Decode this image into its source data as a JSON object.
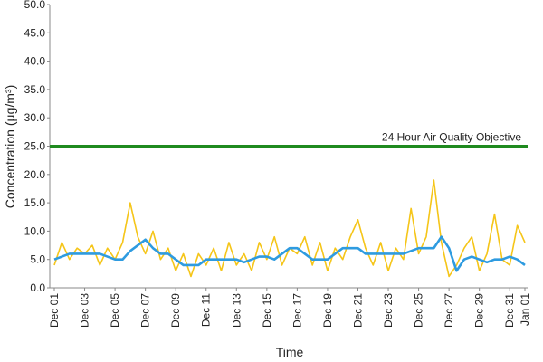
{
  "chart_data": {
    "type": "line",
    "ylabel": "Concentration (µg/m³)",
    "xlabel": "Time",
    "x": [
      0,
      0.5,
      1,
      1.5,
      2,
      2.5,
      3,
      3.5,
      4,
      4.5,
      5,
      5.5,
      6,
      6.5,
      7,
      7.5,
      8,
      8.5,
      9,
      9.5,
      10,
      10.5,
      11,
      11.5,
      12,
      12.5,
      13,
      13.5,
      14,
      14.5,
      15,
      15.5,
      16,
      16.5,
      17,
      17.5,
      18,
      18.5,
      19,
      19.5,
      20,
      20.5,
      21,
      21.5,
      22,
      22.5,
      23,
      23.5,
      24,
      24.5,
      25,
      25.5,
      26,
      26.5,
      27,
      27.5,
      28,
      28.5,
      29,
      29.5,
      30,
      30.5,
      31
    ],
    "series": [
      {
        "color": "#f5c518",
        "values": [
          4,
          8,
          5,
          7,
          6,
          7.5,
          4,
          7,
          5,
          8,
          15,
          9,
          6,
          10,
          5,
          7,
          3,
          6,
          2,
          6,
          4,
          7,
          3,
          8,
          4,
          6,
          3,
          8,
          5,
          9,
          4,
          7,
          6,
          9,
          4,
          8,
          3,
          7,
          5,
          9,
          12,
          7,
          4,
          8,
          3,
          7,
          5,
          14,
          6,
          9,
          19,
          8,
          2,
          4,
          7,
          9,
          3,
          6,
          13,
          5,
          4,
          11,
          8
        ]
      },
      {
        "color": "#2e9be0",
        "values": [
          5,
          5.5,
          6,
          6,
          6,
          6,
          6,
          5.5,
          5,
          5,
          6.5,
          7.5,
          8.5,
          7,
          6,
          6,
          5,
          4,
          4,
          4,
          5,
          5,
          5,
          5,
          5,
          4.5,
          5,
          5.5,
          5.5,
          5,
          6,
          7,
          7,
          6,
          5,
          5,
          5,
          6,
          7,
          7,
          7,
          6,
          6,
          6,
          6,
          6,
          6,
          6.5,
          7,
          7,
          7,
          9,
          7,
          3,
          5,
          5.5,
          5,
          4.5,
          5,
          5,
          5.5,
          5,
          4
        ]
      }
    ],
    "objective": {
      "value": 25,
      "label": "24 Hour Air Quality Objective",
      "color": "#1f8a1f"
    },
    "xlim": [
      0,
      31
    ],
    "xticks": [
      {
        "value": 0,
        "label": "Dec 01"
      },
      {
        "value": 2,
        "label": "Dec 03"
      },
      {
        "value": 4,
        "label": "Dec 05"
      },
      {
        "value": 6,
        "label": "Dec 07"
      },
      {
        "value": 8,
        "label": "Dec 09"
      },
      {
        "value": 10,
        "label": "Dec 11"
      },
      {
        "value": 12,
        "label": "Dec 13"
      },
      {
        "value": 14,
        "label": "Dec 15"
      },
      {
        "value": 16,
        "label": "Dec 17"
      },
      {
        "value": 18,
        "label": "Dec 19"
      },
      {
        "value": 20,
        "label": "Dec 21"
      },
      {
        "value": 22,
        "label": "Dec 23"
      },
      {
        "value": 24,
        "label": "Dec 25"
      },
      {
        "value": 26,
        "label": "Dec 27"
      },
      {
        "value": 28,
        "label": "Dec 29"
      },
      {
        "value": 30,
        "label": "Dec 31"
      },
      {
        "value": 31,
        "label": "Jan 01"
      }
    ],
    "ylim": [
      0,
      50
    ],
    "yticks": [
      {
        "value": 0,
        "label": "0.0"
      },
      {
        "value": 5,
        "label": "5.0"
      },
      {
        "value": 10,
        "label": "10.0"
      },
      {
        "value": 15,
        "label": "15.0"
      },
      {
        "value": 20,
        "label": "20.0"
      },
      {
        "value": 25,
        "label": "25.0"
      },
      {
        "value": 30,
        "label": "30.0"
      },
      {
        "value": 35,
        "label": "35.0"
      },
      {
        "value": 40,
        "label": "40.0"
      },
      {
        "value": 45,
        "label": "45.0"
      },
      {
        "value": 50,
        "label": "50.0"
      }
    ],
    "grid": false
  }
}
